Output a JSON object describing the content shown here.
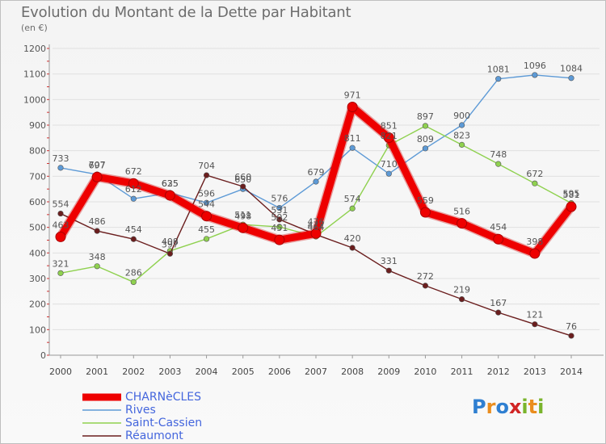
{
  "header": {
    "title": "Evolution du Montant de la Dette par Habitant",
    "unit": "(en €)"
  },
  "logo": {
    "text": "Proxiti",
    "letters": [
      "P",
      "r",
      "o",
      "x",
      "i",
      "t",
      "i"
    ],
    "colors": [
      "#2f7fd1",
      "#ea8d1e",
      "#2f7fd1",
      "#d12525",
      "#7ab42c",
      "#ea8d1e",
      "#7ab42c"
    ]
  },
  "chart_data": {
    "type": "line",
    "x": [
      "2000",
      "2001",
      "2002",
      "2003",
      "2004",
      "2005",
      "2006",
      "2007",
      "2008",
      "2009",
      "2010",
      "2011",
      "2012",
      "2013",
      "2014"
    ],
    "ylim": [
      0,
      1200
    ],
    "yticks": [
      0,
      100,
      200,
      300,
      400,
      500,
      600,
      700,
      800,
      900,
      1000,
      1100,
      1200
    ],
    "grid": "horizontal",
    "legend_position": "bottom-left",
    "series": [
      {
        "name": "Rives",
        "color": "#5d9ad6",
        "values": [
          733,
          707,
          612,
          635,
          596,
          650,
          576,
          679,
          811,
          710,
          809,
          900,
          1081,
          1096,
          1084
        ]
      },
      {
        "name": "Saint-Cassien",
        "color": "#8fd14f",
        "values": [
          321,
          348,
          286,
          408,
          455,
          511,
          502,
          464,
          574,
          821,
          897,
          823,
          748,
          672,
          595
        ]
      },
      {
        "name": "Réaumont",
        "color": "#6b1e1e",
        "values": [
          554,
          486,
          454,
          397,
          704,
          660,
          531,
          472,
          420,
          331,
          272,
          219,
          167,
          121,
          76
        ]
      },
      {
        "name": "CHARNèCLES",
        "color": "#ee0000",
        "values": [
          463,
          697,
          672,
          625,
          544,
          498,
          451,
          476,
          971,
          851,
          559,
          516,
          454,
          398,
          581
        ]
      }
    ]
  }
}
